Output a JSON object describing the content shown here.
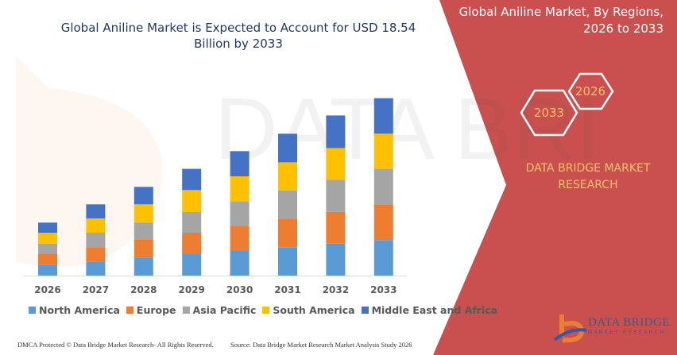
{
  "header": {
    "title_line1": "Global Aniline Market is Expected to Account for USD 18.54",
    "title_line2": "Billion by 2033"
  },
  "side_panel": {
    "title_line1": "Global Aniline Market, By Regions,",
    "title_line2": "2026 to 2033",
    "hex_start": "2026",
    "hex_end": "2033",
    "brand_line1": "DATA BRIDGE MARKET",
    "brand_line2": "RESEARCH",
    "logo_text": "DATA BRIDGE",
    "logo_subtext": "MARKET RESEARCH",
    "panel_color": "#c9504e",
    "accent_color": "#f5c26b"
  },
  "footer": {
    "copyright": "DMCA Protected © Data Bridge Market Research-  All Rights Reserved.",
    "source": "Source: Data Bridge Market Research  Market Analysis Study 2026"
  },
  "chart_data": {
    "type": "bar",
    "stacked": true,
    "title": "Global Aniline Market is Expected to Account for USD 18.54 Billion by 2033",
    "xlabel": "",
    "ylabel": "",
    "y_axis_shown": false,
    "grid": false,
    "legend_position": "bottom",
    "categories": [
      "2026",
      "2027",
      "2028",
      "2029",
      "2030",
      "2031",
      "2032",
      "2033"
    ],
    "series": [
      {
        "name": "North America",
        "color": "#5b9bd5",
        "values": [
          13.3,
          17.7,
          22.7,
          27,
          31,
          35.3,
          40.3,
          44.7
        ]
      },
      {
        "name": "Europe",
        "color": "#ed7d31",
        "values": [
          13.7,
          18,
          22.3,
          27,
          31.7,
          36.3,
          40,
          45
        ]
      },
      {
        "name": "Asia Pacific",
        "color": "#a5a5a5",
        "values": [
          13.3,
          18.3,
          21.7,
          26,
          31,
          35.7,
          40.3,
          44.7
        ]
      },
      {
        "name": "South America",
        "color": "#ffc000",
        "values": [
          13.7,
          18,
          23,
          27.7,
          31.3,
          35.3,
          40,
          44.3
        ]
      },
      {
        "name": "Middle East and Africa",
        "color": "#4472c4",
        "values": [
          12.7,
          17.7,
          22,
          26.7,
          31.7,
          36,
          41,
          44.7
        ]
      }
    ]
  }
}
